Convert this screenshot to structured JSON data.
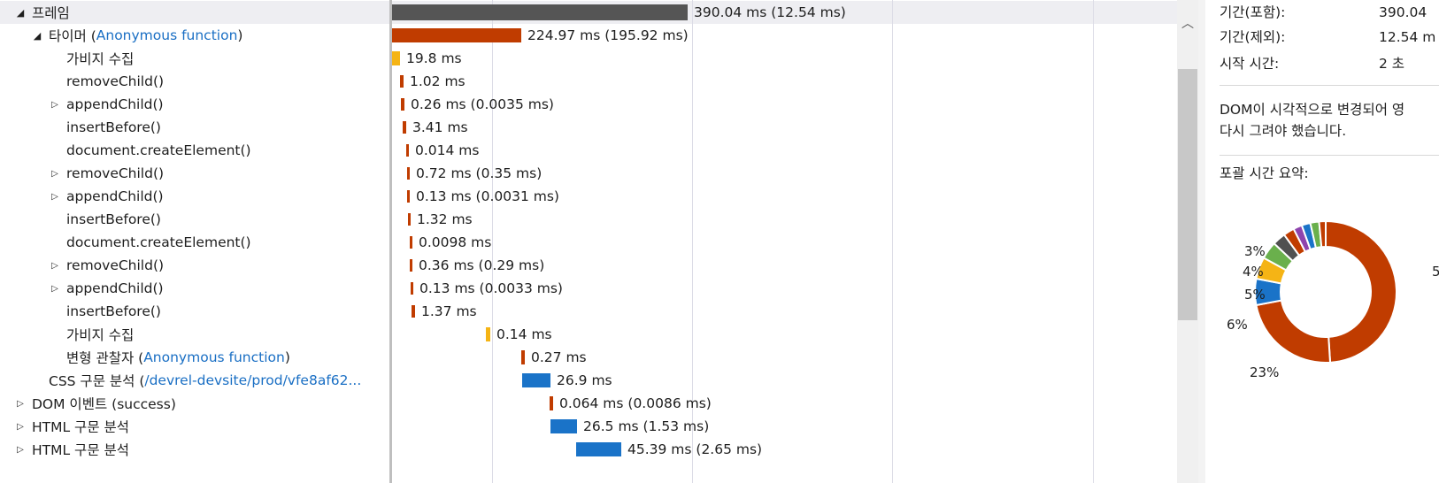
{
  "tree_rows": [
    {
      "expander": "open",
      "label": "프레임",
      "link": "",
      "suffix": ""
    },
    {
      "expander": "open",
      "label": "타이머 (",
      "link": "Anonymous function",
      "suffix": ")"
    },
    {
      "expander": "",
      "label": "가비지 수집",
      "link": "",
      "suffix": ""
    },
    {
      "expander": "",
      "label": "removeChild()",
      "link": "",
      "suffix": ""
    },
    {
      "expander": "closed",
      "label": "appendChild()",
      "link": "",
      "suffix": ""
    },
    {
      "expander": "",
      "label": "insertBefore()",
      "link": "",
      "suffix": ""
    },
    {
      "expander": "",
      "label": "document.createElement()",
      "link": "",
      "suffix": ""
    },
    {
      "expander": "closed",
      "label": "removeChild()",
      "link": "",
      "suffix": ""
    },
    {
      "expander": "closed",
      "label": "appendChild()",
      "link": "",
      "suffix": ""
    },
    {
      "expander": "",
      "label": "insertBefore()",
      "link": "",
      "suffix": ""
    },
    {
      "expander": "",
      "label": "document.createElement()",
      "link": "",
      "suffix": ""
    },
    {
      "expander": "closed",
      "label": "removeChild()",
      "link": "",
      "suffix": ""
    },
    {
      "expander": "closed",
      "label": "appendChild()",
      "link": "",
      "suffix": ""
    },
    {
      "expander": "",
      "label": "insertBefore()",
      "link": "",
      "suffix": ""
    },
    {
      "expander": "",
      "label": "가비지 수집",
      "link": "",
      "suffix": ""
    },
    {
      "expander": "",
      "label": "변형 관찰자 (",
      "link": "Anonymous function",
      "suffix": ")"
    },
    {
      "expander": "",
      "label": "CSS 구문 분석 (",
      "link": "/devrel-devsite/prod/vfe8af62...",
      "suffix": ""
    },
    {
      "expander": "closed",
      "label": "DOM 이벤트 (success)",
      "link": "",
      "suffix": ""
    },
    {
      "expander": "closed",
      "label": "HTML 구문 분석",
      "link": "",
      "suffix": ""
    },
    {
      "expander": "closed",
      "label": "HTML 구문 분석",
      "link": "",
      "suffix": ""
    }
  ],
  "timeline_bars": [
    {
      "label": "390.04 ms (12.54 ms)",
      "color": "#555555"
    },
    {
      "label": "224.97 ms (195.92 ms)",
      "color": "#c03c00"
    },
    {
      "label": "19.8 ms",
      "color": "#f5b415"
    },
    {
      "label": "1.02 ms",
      "color": "#c03c00"
    },
    {
      "label": "0.26 ms (0.0035 ms)",
      "color": "#c03c00"
    },
    {
      "label": "3.41 ms",
      "color": "#c03c00"
    },
    {
      "label": "0.014 ms",
      "color": "#c03c00"
    },
    {
      "label": "0.72 ms (0.35 ms)",
      "color": "#c03c00"
    },
    {
      "label": "0.13 ms (0.0031 ms)",
      "color": "#c03c00"
    },
    {
      "label": "1.32 ms",
      "color": "#c03c00"
    },
    {
      "label": "0.0098 ms",
      "color": "#c03c00"
    },
    {
      "label": "0.36 ms (0.29 ms)",
      "color": "#c03c00"
    },
    {
      "label": "0.13 ms (0.0033 ms)",
      "color": "#c03c00"
    },
    {
      "label": "1.37 ms",
      "color": "#c03c00"
    },
    {
      "label": "0.14 ms",
      "color": "#f5b415"
    },
    {
      "label": "0.27 ms",
      "color": "#c03c00"
    },
    {
      "label": "26.9 ms",
      "color": "#1a73c8"
    },
    {
      "label": "0.064 ms (0.0086 ms)",
      "color": "#c03c00"
    },
    {
      "label": "26.5 ms (1.53 ms)",
      "color": "#1a73c8"
    },
    {
      "label": "45.39 ms (2.65 ms)",
      "color": "#1a73c8"
    }
  ],
  "details": {
    "duration_inclusive_label": "기간(포함):",
    "duration_inclusive_value": "390.04",
    "duration_exclusive_label": "기간(제외):",
    "duration_exclusive_value": "12.54 m",
    "start_time_label": "시작 시간:",
    "start_time_value": "2 초",
    "description_line1": "DOM이 시각적으로 변경되어 영",
    "description_line2": "다시 그려야 했습니다.",
    "summary_title": "포괄 시간 요약:"
  },
  "donut": {
    "segments": [
      {
        "pct": 49,
        "color": "#c03c00"
      },
      {
        "pct": 23,
        "color": "#c03c00"
      },
      {
        "pct": 6,
        "color": "#1a73c8"
      },
      {
        "pct": 5,
        "color": "#f5b415"
      },
      {
        "pct": 4,
        "color": "#6ab04c"
      },
      {
        "pct": 3,
        "color": "#505050"
      },
      {
        "pct": 2.5,
        "color": "#c03c00"
      },
      {
        "pct": 2,
        "color": "#8e44ad"
      },
      {
        "pct": 2,
        "color": "#1a73c8"
      },
      {
        "pct": 2,
        "color": "#6ab04c"
      },
      {
        "pct": 1.5,
        "color": "#c03c00"
      }
    ],
    "labels": [
      "3%",
      "4%",
      "5%",
      "6%",
      "23%",
      "5"
    ]
  }
}
